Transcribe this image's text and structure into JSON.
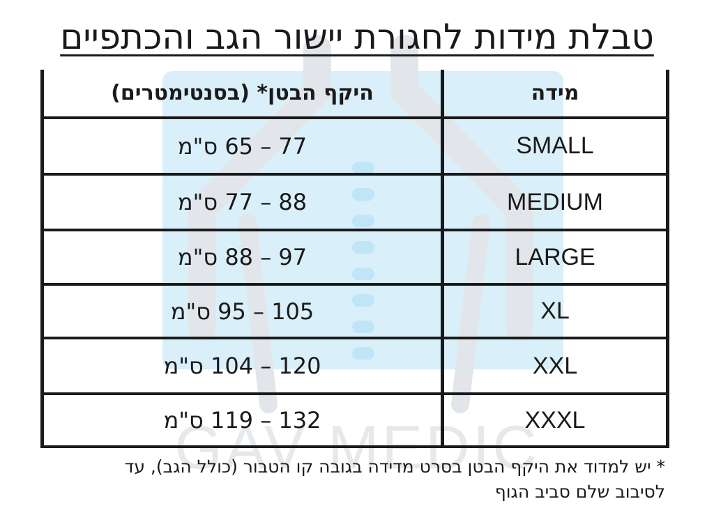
{
  "title": "טבלת מידות לחגורת יישור הגב והכתפיים",
  "table": {
    "headers": {
      "size": "מידה",
      "waist": "היקף הבטן* (בסנטימטרים)"
    },
    "rows": [
      {
        "size": "SMALL",
        "range": "77 – 65 ס\"מ"
      },
      {
        "size": "MEDIUM",
        "range": "88 – 77 ס\"מ"
      },
      {
        "size": "LARGE",
        "range": "97 – 88 ס\"מ"
      },
      {
        "size": "XL",
        "range": "105 – 95 ס\"מ"
      },
      {
        "size": "XXL",
        "range": "120 – 104 ס\"מ"
      },
      {
        "size": "XXXL",
        "range": "132 – 119 ס\"מ"
      }
    ]
  },
  "footnote": {
    "line1": "* יש למדוד את היקף הבטן בסרט מדידה בגובה קו הטבור (כולל הגב), עד",
    "line2": "לסיבוב שלם סביב הגוף"
  },
  "watermark": {
    "text": "GAV MEDIC",
    "logo": "spine-logo-icon",
    "colors": {
      "blue": "#d6eef9",
      "gray": "#e3e6e9",
      "vertebra": "#bfe6f7"
    }
  }
}
